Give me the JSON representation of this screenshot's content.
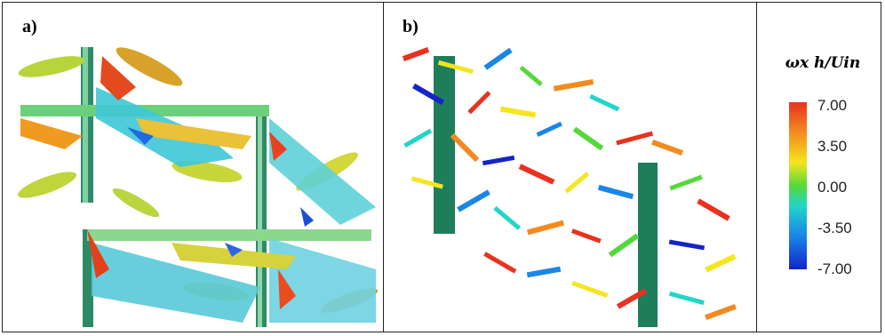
{
  "panels": [
    {
      "label": "a)"
    },
    {
      "label": "b)"
    }
  ],
  "legend": {
    "title": "ωx h/Uin",
    "ticks": [
      "7.00",
      "3.50",
      "0.00",
      "-3.50",
      "-7.00"
    ],
    "colors": [
      "#e8321f",
      "#f38a1f",
      "#f6e51e",
      "#55d83a",
      "#21d5c9",
      "#1a86e8",
      "#1424c8"
    ]
  }
}
